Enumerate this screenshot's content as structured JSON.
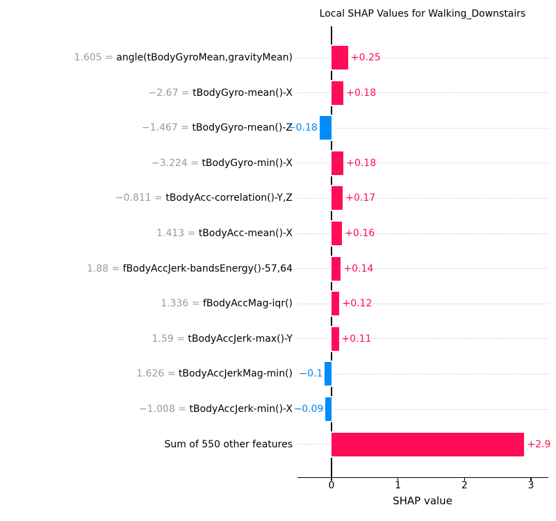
{
  "chart_data": {
    "type": "bar",
    "orientation": "horizontal",
    "title": "Local SHAP Values for Walking_Downstairs",
    "xlabel": "SHAP value",
    "x_ticks": [
      "0",
      "1",
      "2",
      "3"
    ],
    "x_tick_values": [
      0,
      1,
      2,
      3
    ],
    "xlim": [
      -0.51,
      3.27
    ],
    "grid": "dotted horizontal per-row",
    "legend": "none",
    "rows": [
      {
        "feature_value": "1.605",
        "feature": "angle(tBodyGyroMean,gravityMean)",
        "shap": 0.25,
        "label": "+0.25"
      },
      {
        "feature_value": "−2.67",
        "feature": "tBodyGyro-mean()-X",
        "shap": 0.18,
        "label": "+0.18"
      },
      {
        "feature_value": "−1.467",
        "feature": "tBodyGyro-mean()-Z",
        "shap": -0.18,
        "label": "−0.18"
      },
      {
        "feature_value": "−3.224",
        "feature": "tBodyGyro-min()-X",
        "shap": 0.18,
        "label": "+0.18"
      },
      {
        "feature_value": "−0.811",
        "feature": "tBodyAcc-correlation()-Y,Z",
        "shap": 0.17,
        "label": "+0.17"
      },
      {
        "feature_value": "1.413",
        "feature": "tBodyAcc-mean()-X",
        "shap": 0.16,
        "label": "+0.16"
      },
      {
        "feature_value": "1.88",
        "feature": "fBodyAccJerk-bandsEnergy()-57,64",
        "shap": 0.14,
        "label": "+0.14"
      },
      {
        "feature_value": "1.336",
        "feature": "fBodyAccMag-iqr()",
        "shap": 0.12,
        "label": "+0.12"
      },
      {
        "feature_value": "1.59",
        "feature": "tBodyAccJerk-max()-Y",
        "shap": 0.11,
        "label": "+0.11"
      },
      {
        "feature_value": "1.626",
        "feature": "tBodyAccJerkMag-min()",
        "shap": -0.1,
        "label": "−0.1"
      },
      {
        "feature_value": "−1.008",
        "feature": "tBodyAccJerk-min()-X",
        "shap": -0.09,
        "label": "−0.09"
      },
      {
        "feature_value": "",
        "feature": "Sum of 550 other features",
        "shap": 2.9,
        "label": "+2.9"
      }
    ],
    "colors": {
      "positive": "#ff0d57",
      "negative": "#008bfb",
      "feature_value_gray": "#999999",
      "feature_name": "#000000",
      "gridline": "#c9c9c9",
      "axis": "#000000"
    },
    "separator": " = "
  }
}
